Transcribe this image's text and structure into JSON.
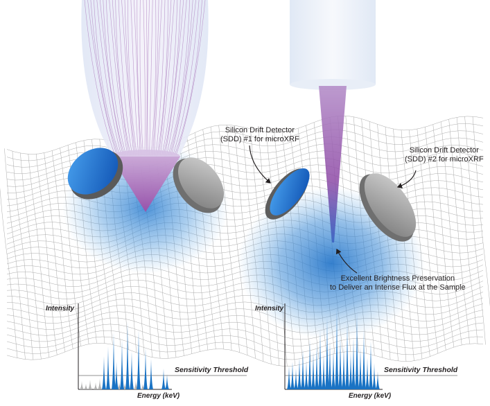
{
  "labels": {
    "sdd1_line1": "Silicon Drift Detector",
    "sdd1_line2": "(SDD) #1 for microXRF",
    "sdd2_line1": "Silicon Drift Detector",
    "sdd2_line2": "(SDD) #2 for microXRF",
    "brightness_line1": "Excellent Brightness Preservation",
    "brightness_line2": "to Deliver an Intense Flux at the Sample"
  },
  "left_spectrum": {
    "y_label": "Intensity",
    "x_label": "Energy (keV)",
    "threshold_label": "Sensitivity Threshold"
  },
  "right_spectrum": {
    "y_label": "Intensity",
    "x_label": "Energy (keV)",
    "threshold_label": "Sensitivity Threshold"
  },
  "colors": {
    "peak_blue": "#1a73c4",
    "peak_gray": "#b4b4b4",
    "beam_purple": "#a76bb0",
    "detector_blue": "#1d6fd1",
    "detector_gray": "#8a8a8a",
    "glow_blue": "#3f8fd6"
  }
}
